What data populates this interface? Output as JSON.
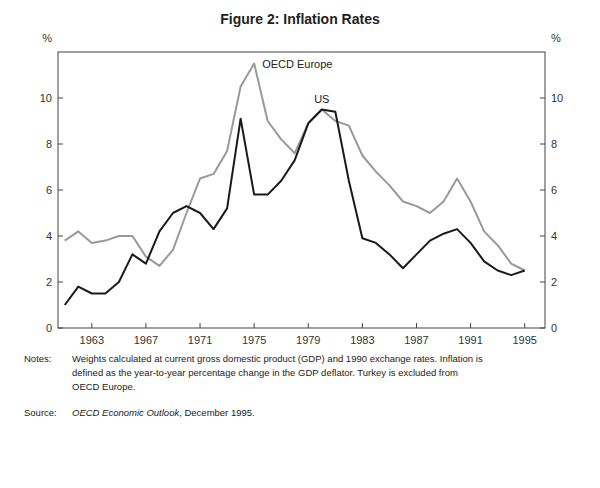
{
  "chart_data": {
    "type": "line",
    "title": "Figure 2: Inflation Rates",
    "x": [
      1961,
      1962,
      1963,
      1964,
      1965,
      1966,
      1967,
      1968,
      1969,
      1970,
      1971,
      1972,
      1973,
      1974,
      1975,
      1976,
      1977,
      1978,
      1979,
      1980,
      1981,
      1982,
      1983,
      1984,
      1985,
      1986,
      1987,
      1988,
      1989,
      1990,
      1991,
      1992,
      1993,
      1994,
      1995
    ],
    "series": [
      {
        "name": "OECD Europe",
        "color": "#999999",
        "values": [
          3.8,
          4.2,
          3.7,
          3.8,
          4.0,
          4.0,
          3.1,
          2.7,
          3.4,
          5.0,
          6.5,
          6.7,
          7.7,
          10.5,
          11.5,
          9.0,
          8.2,
          7.6,
          8.9,
          9.5,
          9.0,
          8.8,
          7.5,
          6.8,
          6.2,
          5.5,
          5.3,
          5.0,
          5.5,
          6.5,
          5.5,
          4.2,
          3.6,
          2.8,
          2.5
        ]
      },
      {
        "name": "US",
        "color": "#1a1a1a",
        "values": [
          1.0,
          1.8,
          1.5,
          1.5,
          2.0,
          3.2,
          2.8,
          4.2,
          5.0,
          5.3,
          5.0,
          4.3,
          5.2,
          9.1,
          5.8,
          5.8,
          6.4,
          7.3,
          8.9,
          9.5,
          9.4,
          6.4,
          3.9,
          3.7,
          3.2,
          2.6,
          3.2,
          3.8,
          4.1,
          4.3,
          3.7,
          2.9,
          2.5,
          2.3,
          2.5
        ]
      }
    ],
    "xlim": [
      1960.5,
      1996.5
    ],
    "xticks": [
      1963,
      1967,
      1971,
      1975,
      1979,
      1983,
      1987,
      1991,
      1995
    ],
    "ylim": [
      0,
      12
    ],
    "yticks": [
      0,
      2,
      4,
      6,
      8,
      10
    ],
    "y2lim": [
      0,
      12
    ],
    "y2ticks": [
      0,
      2,
      4,
      6,
      8,
      10
    ],
    "ylabel": "%",
    "y2label": "%",
    "grid": false,
    "annotations": [
      "Notes:",
      "Weights calculated at current gross domestic product (GDP) and 1990 exchange rates. Inflation is\ndefined as the year-to-year percentage change in the GDP deflator.  Turkey is excluded from\nOECD Europe.",
      "Source:",
      "OECD Economic Outlook",
      ", December 1995."
    ]
  }
}
